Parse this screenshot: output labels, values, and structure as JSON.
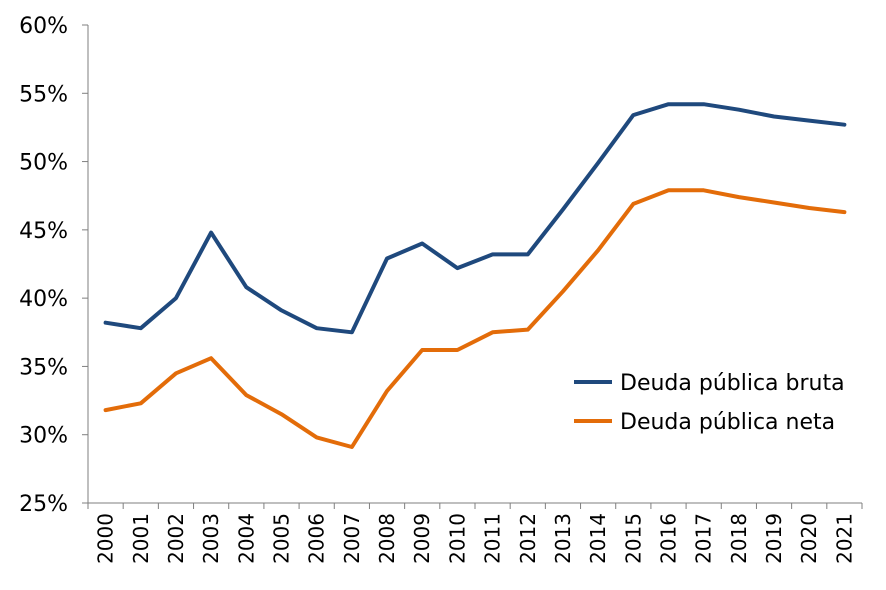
{
  "chart_data": {
    "type": "line",
    "title": "",
    "xlabel": "",
    "ylabel": "",
    "ylim": [
      25,
      60
    ],
    "y_tick_values": [
      25,
      30,
      35,
      40,
      45,
      50,
      55,
      60
    ],
    "y_tick_labels": [
      "25%",
      "30%",
      "35%",
      "40%",
      "45%",
      "50%",
      "55%",
      "60%"
    ],
    "x": [
      "2000",
      "2001",
      "2002",
      "2003",
      "2004",
      "2005",
      "2006",
      "2007",
      "2008",
      "2009",
      "2010",
      "2011",
      "2012",
      "2013",
      "2014",
      "2015",
      "2016",
      "2017",
      "2018",
      "2019",
      "2020",
      "2021"
    ],
    "grid": false,
    "legend_position": "right",
    "series": [
      {
        "name": "Deuda pública bruta",
        "color": "#1f497d",
        "values": [
          38.2,
          37.8,
          40.0,
          44.8,
          40.8,
          39.1,
          37.8,
          37.5,
          42.9,
          44.0,
          42.2,
          43.2,
          43.2,
          46.5,
          49.9,
          53.4,
          54.2,
          54.2,
          53.8,
          53.3,
          53.0,
          52.7
        ]
      },
      {
        "name": "Deuda pública neta",
        "color": "#e36c09",
        "values": [
          31.8,
          32.3,
          34.5,
          35.6,
          32.9,
          31.5,
          29.8,
          29.1,
          33.2,
          36.2,
          36.2,
          37.5,
          37.7,
          40.5,
          43.5,
          46.9,
          47.9,
          47.9,
          47.4,
          47.0,
          46.6,
          46.3
        ]
      }
    ]
  }
}
